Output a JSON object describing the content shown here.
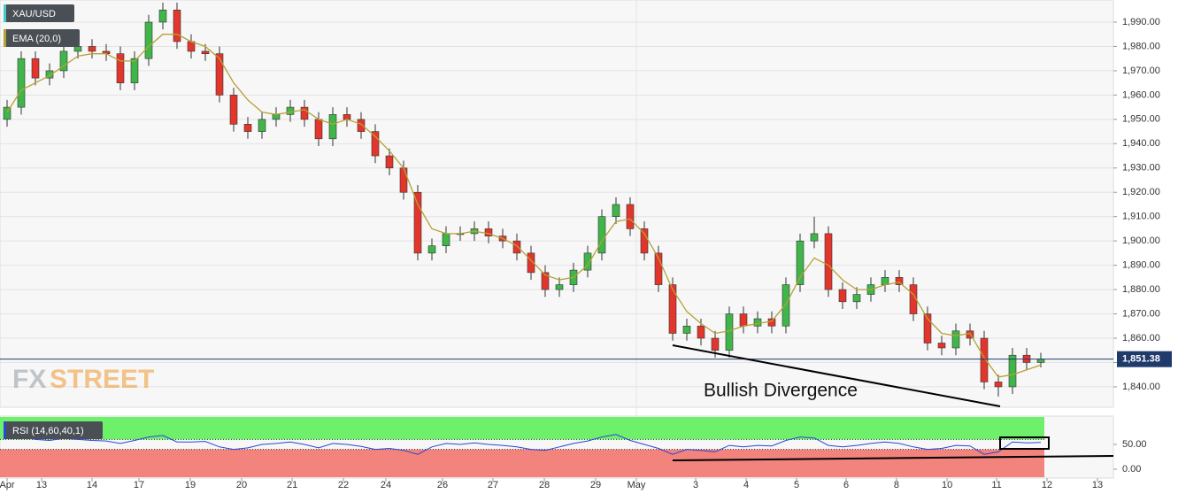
{
  "chart_data": [
    {
      "type": "candlestick",
      "title": "XAU/USD",
      "open": [
        1950,
        1955,
        1975,
        1967,
        1970,
        1978,
        1980,
        1978,
        1977,
        1965,
        1975,
        1990,
        1995,
        1982,
        1978,
        1977,
        1960,
        1948,
        1945,
        1950,
        1952,
        1955,
        1950,
        1942,
        1952,
        1950,
        1945,
        1935,
        1930,
        1920,
        1895,
        1898,
        1903,
        1903,
        1905,
        1902,
        1900,
        1895,
        1887,
        1880,
        1882,
        1888,
        1895,
        1910,
        1915,
        1905,
        1895,
        1882,
        1862,
        1865,
        1860,
        1855,
        1870,
        1865,
        1868,
        1865,
        1882,
        1900,
        1903,
        1880,
        1875,
        1878,
        1882,
        1885,
        1882,
        1870,
        1858,
        1856,
        1863,
        1860,
        1842,
        1840,
        1853,
        1850
      ],
      "high": [
        1958,
        1978,
        1978,
        1973,
        1981,
        1983,
        1983,
        1981,
        1980,
        1978,
        1993,
        1998,
        1998,
        1985,
        1981,
        1980,
        1963,
        1951,
        1953,
        1955,
        1958,
        1958,
        1953,
        1955,
        1955,
        1953,
        1948,
        1938,
        1933,
        1923,
        1901,
        1906,
        1906,
        1908,
        1908,
        1905,
        1903,
        1898,
        1890,
        1885,
        1891,
        1898,
        1913,
        1918,
        1918,
        1908,
        1898,
        1885,
        1868,
        1868,
        1863,
        1873,
        1873,
        1871,
        1871,
        1885,
        1903,
        1910,
        1906,
        1883,
        1881,
        1885,
        1888,
        1888,
        1885,
        1873,
        1861,
        1866,
        1866,
        1863,
        1845,
        1856,
        1856,
        1854
      ],
      "low": [
        1947,
        1952,
        1964,
        1964,
        1967,
        1975,
        1975,
        1974,
        1962,
        1962,
        1972,
        1987,
        1979,
        1975,
        1974,
        1957,
        1945,
        1942,
        1942,
        1947,
        1949,
        1947,
        1939,
        1939,
        1947,
        1942,
        1932,
        1927,
        1917,
        1892,
        1892,
        1895,
        1900,
        1900,
        1899,
        1897,
        1892,
        1884,
        1877,
        1877,
        1879,
        1885,
        1892,
        1907,
        1902,
        1892,
        1879,
        1859,
        1859,
        1857,
        1852,
        1852,
        1862,
        1862,
        1862,
        1862,
        1879,
        1897,
        1877,
        1872,
        1872,
        1875,
        1879,
        1879,
        1867,
        1855,
        1853,
        1853,
        1857,
        1839,
        1836,
        1837,
        1847,
        1848
      ],
      "close": [
        1955,
        1975,
        1967,
        1970,
        1978,
        1980,
        1978,
        1977,
        1965,
        1975,
        1990,
        1995,
        1982,
        1978,
        1977,
        1960,
        1948,
        1945,
        1950,
        1952,
        1955,
        1950,
        1942,
        1952,
        1950,
        1945,
        1935,
        1930,
        1920,
        1895,
        1898,
        1903,
        1903,
        1905,
        1902,
        1900,
        1895,
        1887,
        1880,
        1882,
        1888,
        1895,
        1910,
        1915,
        1905,
        1895,
        1882,
        1862,
        1865,
        1860,
        1855,
        1870,
        1865,
        1868,
        1865,
        1882,
        1900,
        1903,
        1880,
        1875,
        1878,
        1882,
        1885,
        1882,
        1870,
        1858,
        1856,
        1863,
        1860,
        1842,
        1840,
        1853,
        1850,
        1851.38
      ],
      "up_color": "#3fb54a",
      "down_color": "#e2362c",
      "ema": {
        "name": "EMA (20,0)",
        "color": "#b5a232",
        "values": [
          1953,
          1962,
          1965,
          1968,
          1972,
          1976,
          1977,
          1977,
          1974,
          1974,
          1980,
          1985,
          1985,
          1982,
          1980,
          1975,
          1965,
          1958,
          1953,
          1952,
          1953,
          1954,
          1950,
          1948,
          1950,
          1948,
          1943,
          1937,
          1930,
          1915,
          1905,
          1903,
          1903,
          1904,
          1903,
          1901,
          1898,
          1892,
          1886,
          1884,
          1885,
          1890,
          1900,
          1908,
          1909,
          1903,
          1893,
          1880,
          1871,
          1866,
          1862,
          1863,
          1865,
          1866,
          1867,
          1874,
          1885,
          1893,
          1890,
          1884,
          1880,
          1880,
          1882,
          1883,
          1878,
          1868,
          1862,
          1861,
          1862,
          1852,
          1844,
          1845,
          1847,
          1849
        ]
      },
      "last_price": {
        "value": 1851.38,
        "label": "1,851.38"
      },
      "annotation": "Bullish Divergence",
      "watermark": [
        "FX",
        "STREET"
      ],
      "xlim": [
        -0.5,
        78.125
      ],
      "ylim": [
        1831.6,
        1999.1
      ],
      "yticks": [
        {
          "value": 1840,
          "label": "1,840.00"
        },
        {
          "value": 1850,
          "label": "1,850.00"
        },
        {
          "value": 1860,
          "label": "1,860.00"
        },
        {
          "value": 1870,
          "label": "1,870.00"
        },
        {
          "value": 1880,
          "label": "1,880.00"
        },
        {
          "value": 1890,
          "label": "1,890.00"
        },
        {
          "value": 1900,
          "label": "1,900.00"
        },
        {
          "value": 1910,
          "label": "1,910.00"
        },
        {
          "value": 1920,
          "label": "1,920.00"
        },
        {
          "value": 1930,
          "label": "1,930.00"
        },
        {
          "value": 1940,
          "label": "1,940.00"
        },
        {
          "value": 1950,
          "label": "1,950.00"
        },
        {
          "value": 1960,
          "label": "1,960.00"
        },
        {
          "value": 1970,
          "label": "1,970.00"
        },
        {
          "value": 1980,
          "label": "1,980.00"
        },
        {
          "value": 1990,
          "label": "1,990.00"
        }
      ],
      "grid": true
    },
    {
      "type": "line",
      "title": "RSI (14,60,40,1)",
      "color": "#2b45d8",
      "values": [
        62,
        66,
        60,
        58,
        62,
        60,
        58,
        57,
        52,
        58,
        65,
        68,
        55,
        55,
        56,
        45,
        40,
        43,
        50,
        52,
        55,
        50,
        43,
        52,
        50,
        46,
        40,
        42,
        38,
        30,
        45,
        52,
        50,
        53,
        50,
        48,
        45,
        40,
        38,
        45,
        52,
        57,
        65,
        70,
        58,
        50,
        42,
        30,
        40,
        38,
        35,
        48,
        45,
        48,
        47,
        58,
        65,
        63,
        48,
        45,
        48,
        52,
        55,
        52,
        45,
        40,
        42,
        48,
        47,
        30,
        35,
        55,
        53,
        54
      ],
      "upper": 60,
      "lower": 40,
      "upper_color": "#6ef06a",
      "lower_color": "#f2837d",
      "xlim": [
        -0.5,
        78.125
      ],
      "ylim": [
        -17.9,
        107.1
      ],
      "yticks": [
        {
          "value": 0,
          "label": "0.00"
        },
        {
          "value": 50,
          "label": "50.00"
        }
      ],
      "xticks": [
        {
          "value": 0,
          "label": "Apr"
        },
        {
          "value": 2.44,
          "label": "13"
        },
        {
          "value": 6,
          "label": "14"
        },
        {
          "value": 9.31,
          "label": "17"
        },
        {
          "value": 12.94,
          "label": "19"
        },
        {
          "value": 16.56,
          "label": "20"
        },
        {
          "value": 20.13,
          "label": "21"
        },
        {
          "value": 23.75,
          "label": "22"
        },
        {
          "value": 26.75,
          "label": "24"
        },
        {
          "value": 30.75,
          "label": "26"
        },
        {
          "value": 34.31,
          "label": "27"
        },
        {
          "value": 37.94,
          "label": "28"
        },
        {
          "value": 41.56,
          "label": "29"
        },
        {
          "value": 44.44,
          "label": "May"
        },
        {
          "value": 48.63,
          "label": "3"
        },
        {
          "value": 52.19,
          "label": "4"
        },
        {
          "value": 55.75,
          "label": "5"
        },
        {
          "value": 59.25,
          "label": "6"
        },
        {
          "value": 62.81,
          "label": "8"
        },
        {
          "value": 66.38,
          "label": "10"
        },
        {
          "value": 69.88,
          "label": "11"
        },
        {
          "value": 73.44,
          "label": "12"
        },
        {
          "value": 77,
          "label": "13"
        }
      ]
    }
  ]
}
